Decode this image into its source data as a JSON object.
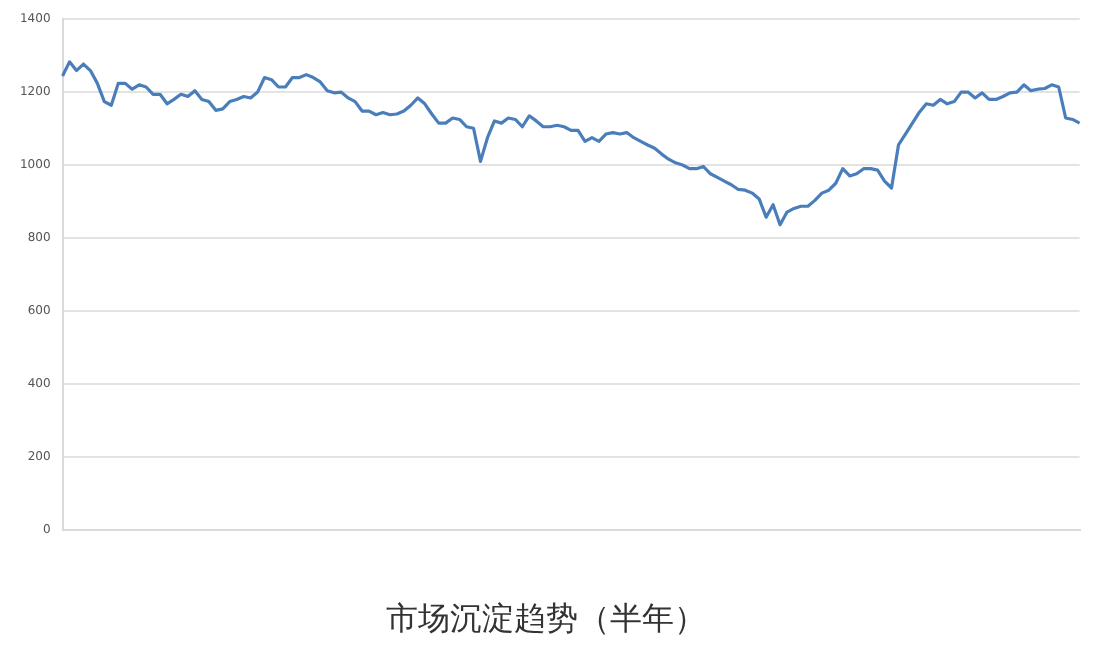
{
  "chart_data": {
    "type": "line",
    "title": "市场沉淀趋势（半年）",
    "categories": [
      null,
      null,
      null,
      null,
      null,
      null,
      null,
      null,
      null,
      null,
      null,
      null,
      null,
      null,
      null,
      null,
      null,
      null,
      null,
      null,
      null,
      null,
      null,
      null,
      null,
      null,
      null,
      null,
      null,
      null,
      null,
      null,
      null,
      null,
      null,
      null,
      null,
      null,
      null,
      null,
      null,
      null,
      null,
      null,
      null,
      null,
      null,
      null,
      null,
      null,
      null,
      null,
      null,
      null,
      null,
      null,
      null,
      null,
      null,
      null,
      null,
      null,
      null,
      null,
      null,
      null,
      null,
      null,
      null,
      null,
      null,
      null,
      null,
      null,
      null,
      null,
      null,
      null,
      null,
      null,
      null,
      null,
      null,
      null,
      null,
      null,
      null,
      null,
      null,
      null,
      null,
      null,
      null,
      null,
      null,
      null,
      null,
      null,
      null,
      null,
      null,
      null,
      null,
      null,
      null,
      null,
      null,
      null,
      null,
      null,
      null,
      null,
      null,
      null,
      null,
      null,
      null,
      null,
      null,
      null,
      null,
      null,
      null,
      null,
      null,
      null,
      null,
      null,
      null,
      null,
      null,
      null,
      null,
      null,
      null,
      null,
      null,
      null,
      null,
      null,
      null,
      null,
      null,
      null,
      null,
      null,
      null
    ],
    "series": [
      {
        "color": "#4a7ebb",
        "values": [
          1244,
          1283,
          1259,
          1277,
          1259,
          1224,
          1174,
          1164,
          1224,
          1224,
          1208,
          1220,
          1214,
          1194,
          1194,
          1168,
          1180,
          1194,
          1188,
          1204,
          1180,
          1174,
          1150,
          1154,
          1174,
          1180,
          1188,
          1184,
          1200,
          1240,
          1234,
          1214,
          1214,
          1240,
          1240,
          1248,
          1240,
          1228,
          1204,
          1198,
          1200,
          1184,
          1174,
          1148,
          1148,
          1138,
          1144,
          1138,
          1140,
          1148,
          1164,
          1184,
          1168,
          1140,
          1115,
          1115,
          1129,
          1125,
          1105,
          1101,
          1010,
          1075,
          1121,
          1115,
          1129,
          1125,
          1105,
          1135,
          1121,
          1105,
          1105,
          1109,
          1105,
          1095,
          1095,
          1065,
          1075,
          1065,
          1085,
          1089,
          1085,
          1089,
          1075,
          1065,
          1055,
          1046,
          1030,
          1016,
          1006,
          1000,
          990,
          990,
          996,
          976,
          966,
          956,
          946,
          933,
          931,
          923,
          907,
          857,
          891,
          836,
          871,
          881,
          887,
          887,
          903,
          923,
          931,
          950,
          990,
          970,
          976,
          990,
          990,
          986,
          956,
          937,
          1055,
          1085,
          1115,
          1145,
          1168,
          1164,
          1180,
          1168,
          1174,
          1200,
          1200,
          1184,
          1198,
          1180,
          1180,
          1188,
          1198,
          1200,
          1220,
          1204,
          1208,
          1210,
          1220,
          1214,
          1129,
          1125,
          1115
        ]
      }
    ],
    "ylim": [
      0,
      1400
    ],
    "yticks": [
      0,
      200,
      400,
      600,
      800,
      1000,
      1200,
      1400
    ],
    "grid": "y",
    "marker": "none",
    "line_style": "solid",
    "legend": false
  }
}
